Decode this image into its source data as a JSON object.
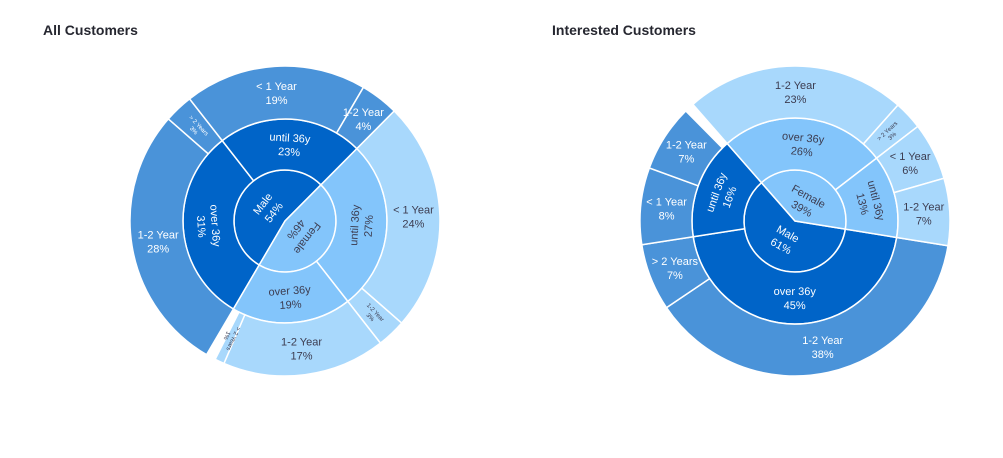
{
  "chart_data": [
    {
      "type": "sunburst",
      "title": "All Customers",
      "nodes": [
        {
          "label": "Male",
          "percent": "54%",
          "value": 54,
          "children": [
            {
              "label": "over 36y",
              "percent": "31%",
              "value": 31,
              "children": [
                {
                  "label": "1-2 Year",
                  "percent": "28%",
                  "value": 28
                },
                {
                  "label": "> 2 Years",
                  "percent": "3%",
                  "value": 3
                }
              ]
            },
            {
              "label": "until 36y",
              "percent": "23%",
              "value": 23,
              "children": [
                {
                  "label": "< 1 Year",
                  "percent": "19%",
                  "value": 19
                },
                {
                  "label": "1-2 Year",
                  "percent": "4%",
                  "value": 4
                }
              ]
            }
          ]
        },
        {
          "label": "Female",
          "percent": "46%",
          "value": 46,
          "children": [
            {
              "label": "until 36y",
              "percent": "27%",
              "value": 27,
              "children": [
                {
                  "label": "< 1 Year",
                  "percent": "24%",
                  "value": 24
                },
                {
                  "label": "1-2 Year",
                  "percent": "3%",
                  "value": 3
                }
              ]
            },
            {
              "label": "over 36y",
              "percent": "19%",
              "value": 19,
              "children": [
                {
                  "label": "1-2 Year",
                  "percent": "17%",
                  "value": 17
                },
                {
                  "label": "> 2 Years",
                  "percent": "1%",
                  "value": 1
                }
              ]
            }
          ]
        }
      ]
    },
    {
      "type": "sunburst",
      "title": "Interested Customers",
      "nodes": [
        {
          "label": "Male",
          "percent": "61%",
          "value": 61,
          "children": [
            {
              "label": "over 36y",
              "percent": "45%",
              "value": 45,
              "children": [
                {
                  "label": "1-2 Year",
                  "percent": "38%",
                  "value": 38
                },
                {
                  "label": "> 2 Years",
                  "percent": "7%",
                  "value": 7
                }
              ]
            },
            {
              "label": "until 36y",
              "percent": "16%",
              "value": 16,
              "children": [
                {
                  "label": "< 1 Year",
                  "percent": "8%",
                  "value": 8
                },
                {
                  "label": "1-2 Year",
                  "percent": "7%",
                  "value": 7
                }
              ]
            }
          ]
        },
        {
          "label": "Female",
          "percent": "39%",
          "value": 39,
          "children": [
            {
              "label": "over 36y",
              "percent": "26%",
              "value": 26,
              "children": [
                {
                  "label": "1-2 Year",
                  "percent": "23%",
                  "value": 23
                },
                {
                  "label": "> 2 Years",
                  "percent": "3%",
                  "value": 3
                }
              ]
            },
            {
              "label": "until 36y",
              "percent": "13%",
              "value": 13,
              "children": [
                {
                  "label": "< 1 Year",
                  "percent": "6%",
                  "value": 6
                },
                {
                  "label": "1-2 Year",
                  "percent": "7%",
                  "value": 7
                }
              ]
            }
          ]
        }
      ]
    }
  ],
  "colors": {
    "male_inner": "#0064c8",
    "male_outer": "#4a93d9",
    "female_inner": "#83c5fb",
    "female_outer": "#a8d8fc",
    "title_text": "#262730",
    "label_dark_bg": "#ffffff",
    "label_light_bg": "#3c3c50"
  }
}
